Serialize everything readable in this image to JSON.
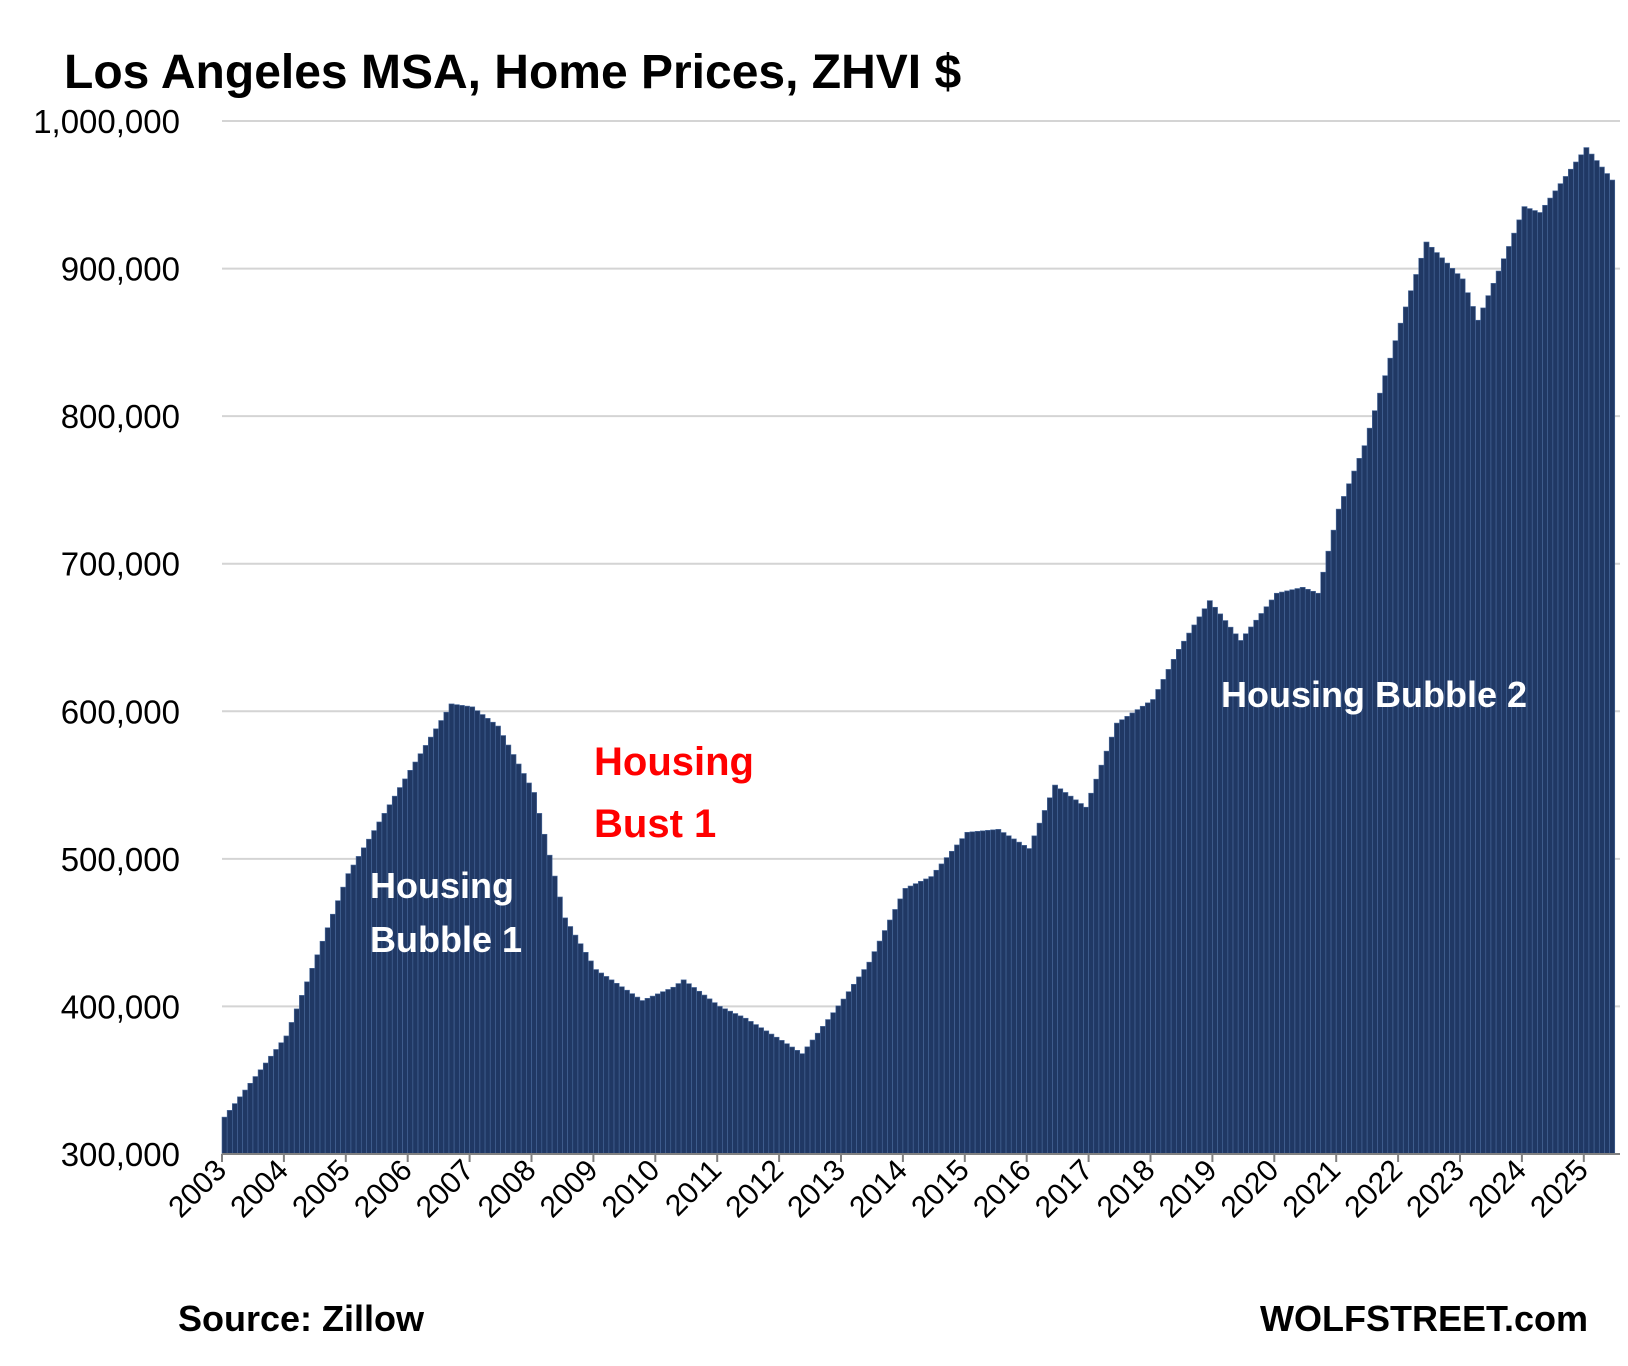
{
  "chart_data": {
    "type": "bar",
    "title": "Los Angeles MSA, Home Prices, ZHVI $",
    "xlabel": "",
    "ylabel": "",
    "ylim": [
      300000,
      1000000
    ],
    "yticks": [
      "300,000",
      "400,000",
      "500,000",
      "600,000",
      "700,000",
      "800,000",
      "900,000",
      "1,000,000"
    ],
    "xticks": [
      "2003",
      "2004",
      "2005",
      "2006",
      "2007",
      "2008",
      "2009",
      "2010",
      "2011",
      "2012",
      "2013",
      "2014",
      "2015",
      "2016",
      "2017",
      "2018",
      "2019",
      "2020",
      "2021",
      "2022",
      "2023",
      "2024",
      "2025"
    ],
    "grid": true,
    "bar_color": "#203864",
    "anchors": [
      [
        "2003-01",
        325000
      ],
      [
        "2004-01",
        380000
      ],
      [
        "2005-01",
        490000
      ],
      [
        "2006-01",
        560000
      ],
      [
        "2006-09",
        605000
      ],
      [
        "2007-01",
        603000
      ],
      [
        "2007-06",
        590000
      ],
      [
        "2008-01",
        545000
      ],
      [
        "2008-07",
        460000
      ],
      [
        "2009-01",
        425000
      ],
      [
        "2009-10",
        404000
      ],
      [
        "2010-04",
        413000
      ],
      [
        "2010-06",
        418000
      ],
      [
        "2011-01",
        400000
      ],
      [
        "2011-06",
        392000
      ],
      [
        "2012-01",
        377000
      ],
      [
        "2012-05",
        368000
      ],
      [
        "2013-01",
        405000
      ],
      [
        "2013-06",
        430000
      ],
      [
        "2014-01",
        480000
      ],
      [
        "2014-06",
        488000
      ],
      [
        "2015-01",
        518000
      ],
      [
        "2015-07",
        520000
      ],
      [
        "2016-01",
        507000
      ],
      [
        "2016-06",
        550000
      ],
      [
        "2016-12",
        535000
      ],
      [
        "2017-06",
        592000
      ],
      [
        "2018-01",
        608000
      ],
      [
        "2018-06",
        642000
      ],
      [
        "2018-12",
        675000
      ],
      [
        "2019-06",
        648000
      ],
      [
        "2020-01",
        680000
      ],
      [
        "2020-06",
        684000
      ],
      [
        "2020-09",
        680000
      ],
      [
        "2021-01",
        737000
      ],
      [
        "2021-06",
        780000
      ],
      [
        "2022-01",
        863000
      ],
      [
        "2022-06",
        918000
      ],
      [
        "2023-01",
        893000
      ],
      [
        "2023-04",
        865000
      ],
      [
        "2023-10",
        915000
      ],
      [
        "2024-01",
        942000
      ],
      [
        "2024-04",
        938000
      ],
      [
        "2025-01",
        982000
      ],
      [
        "2025-06",
        960000
      ]
    ],
    "annotations": [
      {
        "lines": [
          "Housing",
          "Bubble 1"
        ],
        "color": "#ffffff"
      },
      {
        "lines": [
          "Housing",
          "Bust 1"
        ],
        "color": "#ff0000"
      },
      {
        "lines": [
          "Housing Bubble 2"
        ],
        "color": "#ffffff"
      }
    ]
  },
  "footer": {
    "source": "Source: Zillow",
    "brand": "WOLFSTREET.com"
  }
}
